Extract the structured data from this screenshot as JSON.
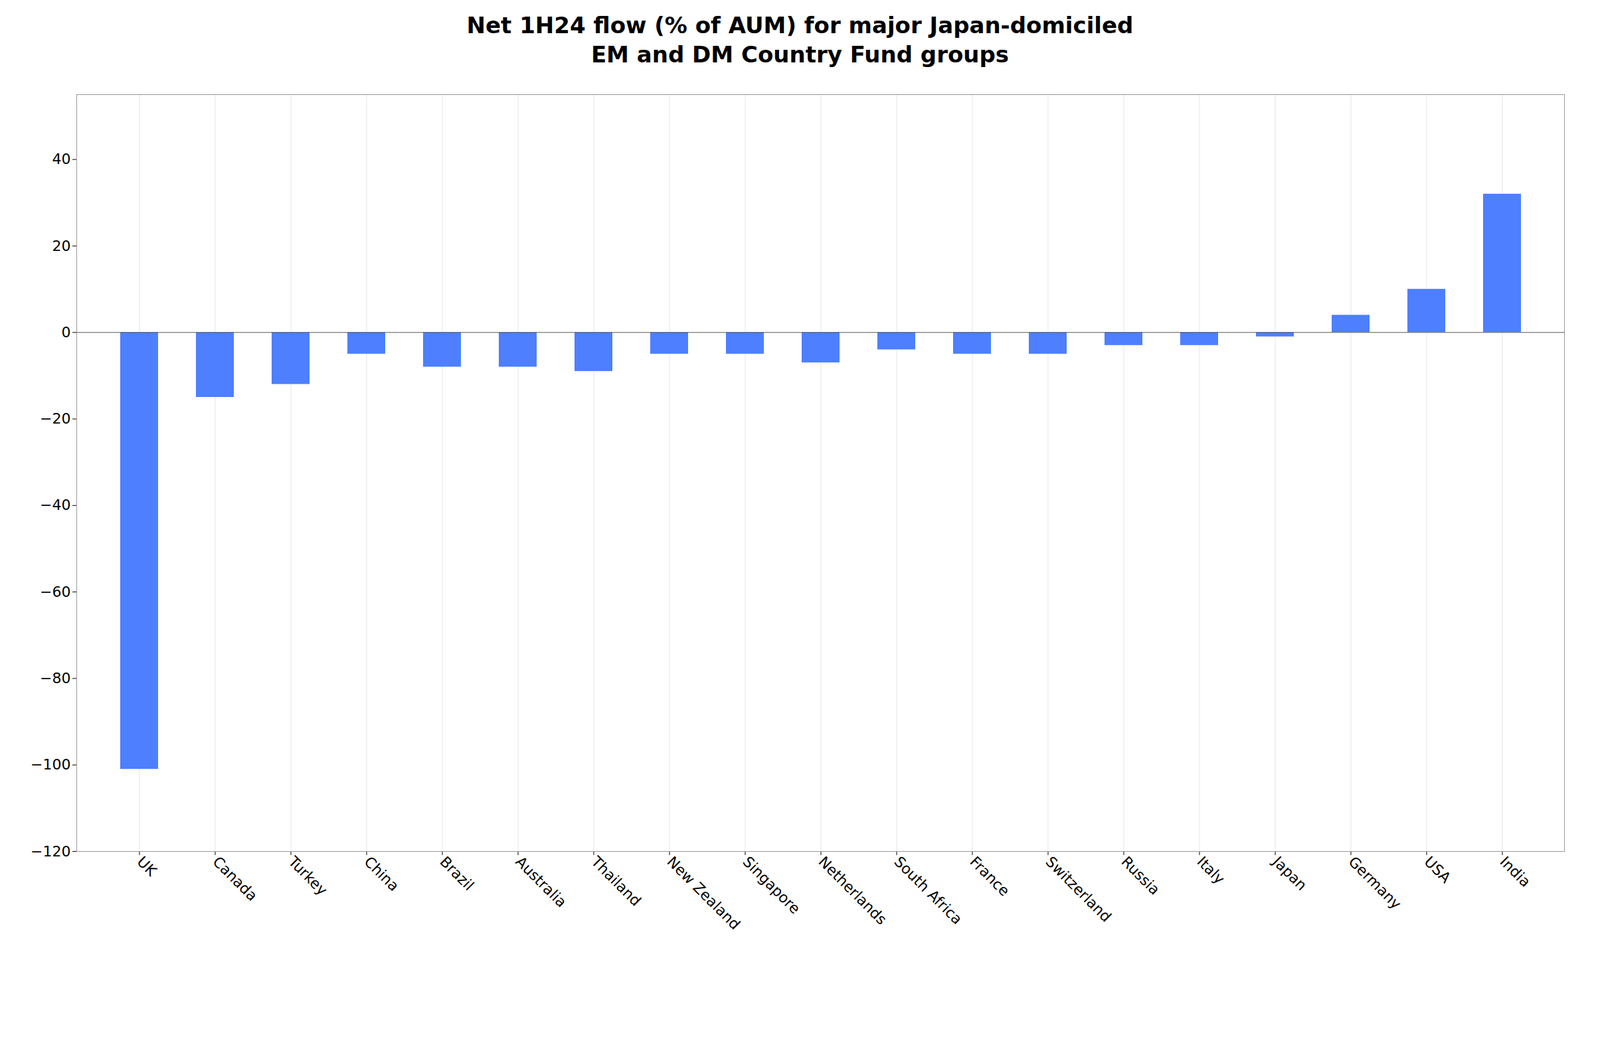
{
  "chart_data": {
    "type": "bar",
    "title": "Net 1H24 flow (% of AUM) for major Japan-domiciled\nEM and DM Country Fund groups",
    "categories": [
      "UK",
      "Canada",
      "Turkey",
      "China",
      "Brazil",
      "Australia",
      "Thailand",
      "New Zealand",
      "Singapore",
      "Netherlands",
      "South Africa",
      "France",
      "Switzerland",
      "Russia",
      "Italy",
      "Japan",
      "Germany",
      "USA",
      "India"
    ],
    "values": [
      -101,
      -15,
      -12,
      -5,
      -8,
      -8,
      -9,
      -5,
      -5,
      -7,
      -4,
      -5,
      -5,
      -3,
      -3,
      -1,
      4,
      10,
      32
    ],
    "color": "#4d7fff",
    "ylim": [
      -120,
      55
    ],
    "yticks": [
      -120,
      -100,
      -80,
      -60,
      -40,
      -20,
      0,
      20,
      40
    ],
    "grid": true
  }
}
